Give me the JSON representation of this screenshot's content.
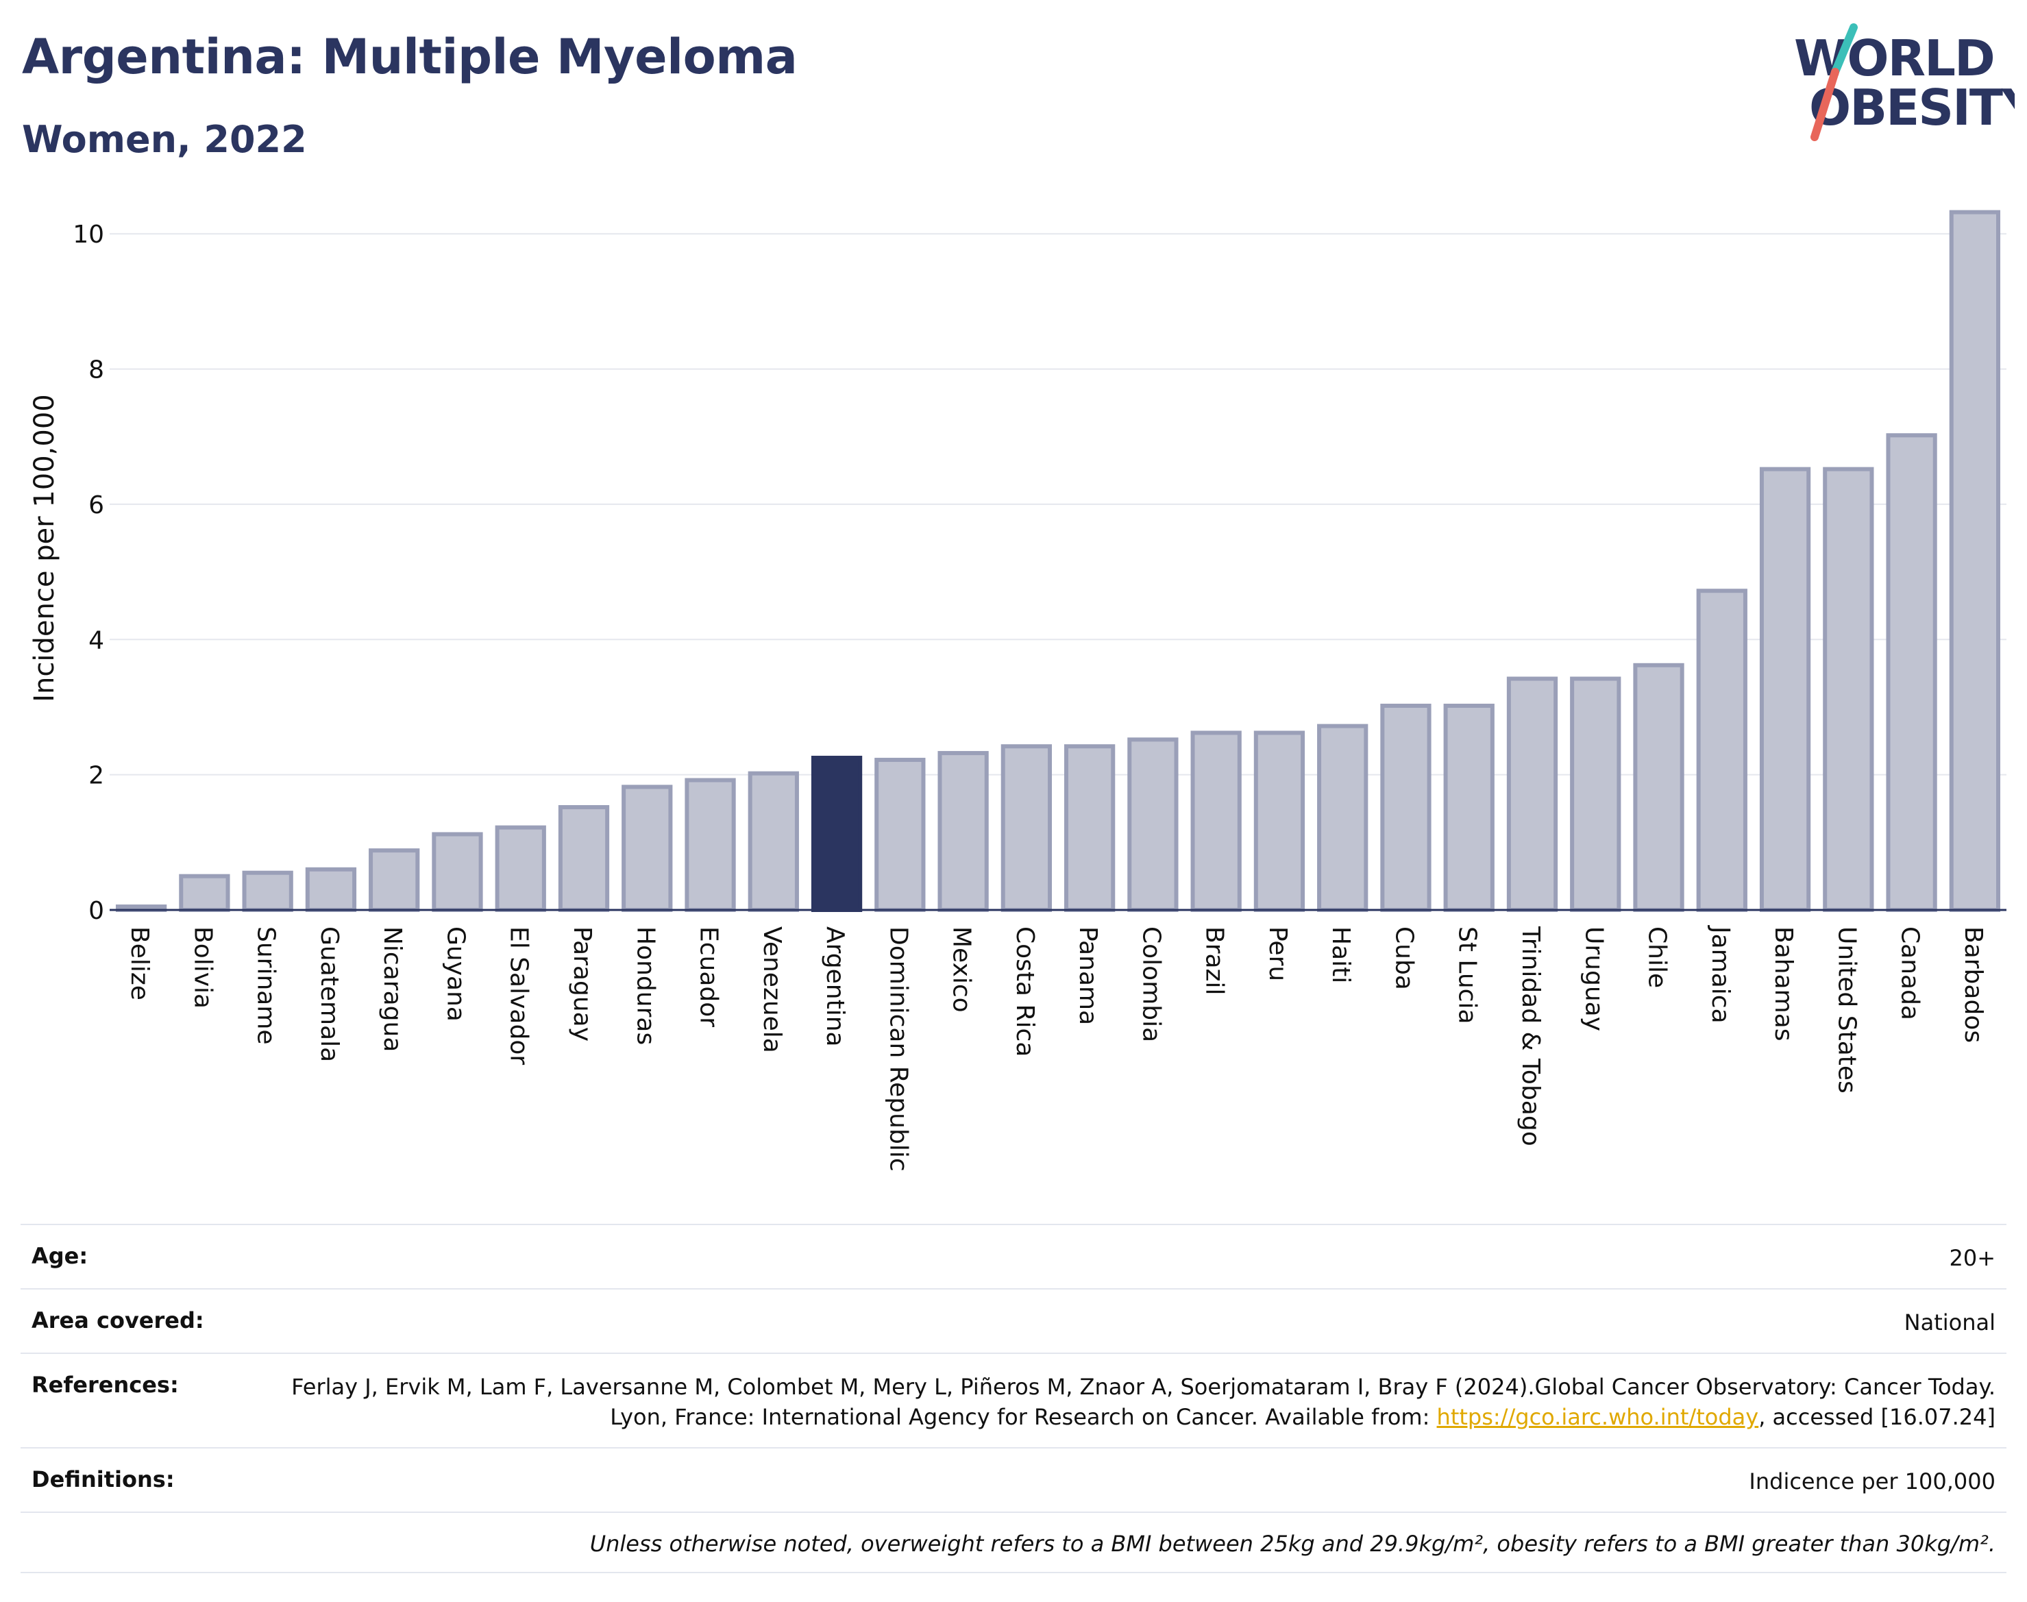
{
  "header": {
    "title": "Argentina: Multiple Myeloma",
    "subtitle": "Women, 2022"
  },
  "logo": {
    "line1": "WORLD",
    "line2": "OBESITY",
    "accent_teal": "#3bbfb8",
    "accent_red": "#e8665a"
  },
  "colors": {
    "bar": "#c0c3d1",
    "bar_stroke": "#9a9fb8",
    "highlight": "#2b3560",
    "grid": "#e5e7ee",
    "axis": "#2b3560"
  },
  "chart_data": {
    "type": "bar",
    "ylabel": "Incidence per 100,000",
    "ylim": [
      0,
      10.6
    ],
    "yticks": [
      0,
      2,
      4,
      6,
      8,
      10
    ],
    "grid": true,
    "highlight": "Argentina",
    "categories": [
      "Belize",
      "Bolivia",
      "Suriname",
      "Guatemala",
      "Nicaragua",
      "Guyana",
      "El Salvador",
      "Paraguay",
      "Honduras",
      "Ecuador",
      "Venezuela",
      "Argentina",
      "Dominican Republic",
      "Mexico",
      "Costa Rica",
      "Panama",
      "Colombia",
      "Brazil",
      "Peru",
      "Haiti",
      "Cuba",
      "St Lucia",
      "Trinidad & Tobago",
      "Uruguay",
      "Chile",
      "Jamaica",
      "Bahamas",
      "United States",
      "Canada",
      "Barbados"
    ],
    "values": [
      0.05,
      0.5,
      0.55,
      0.6,
      0.88,
      1.12,
      1.22,
      1.52,
      1.82,
      1.92,
      2.02,
      2.25,
      2.22,
      2.32,
      2.42,
      2.42,
      2.52,
      2.62,
      2.62,
      2.72,
      3.02,
      3.02,
      3.42,
      3.42,
      3.62,
      4.72,
      6.52,
      6.52,
      7.02,
      10.32
    ]
  },
  "meta": {
    "age_label": "Age:",
    "age_value": "20+",
    "area_label": "Area covered:",
    "area_value": "National",
    "references_label": "References:",
    "references_text_1": "Ferlay J, Ervik M, Lam F, Laversanne M, Colombet M, Mery L, Piñeros M, Znaor A, Soerjomataram I, Bray F (2024).Global Cancer Observatory: Cancer Today. Lyon, France: International Agency for Research on Cancer. Available from: ",
    "references_link": "https://gco.iarc.who.int/today",
    "references_text_2": ", accessed [16.07.24]",
    "definitions_label": "Definitions:",
    "definitions_value": "Indicence per 100,000",
    "footnote": "Unless otherwise noted, overweight refers to a BMI between 25kg and 29.9kg/m², obesity refers to a BMI greater than 30kg/m²."
  }
}
